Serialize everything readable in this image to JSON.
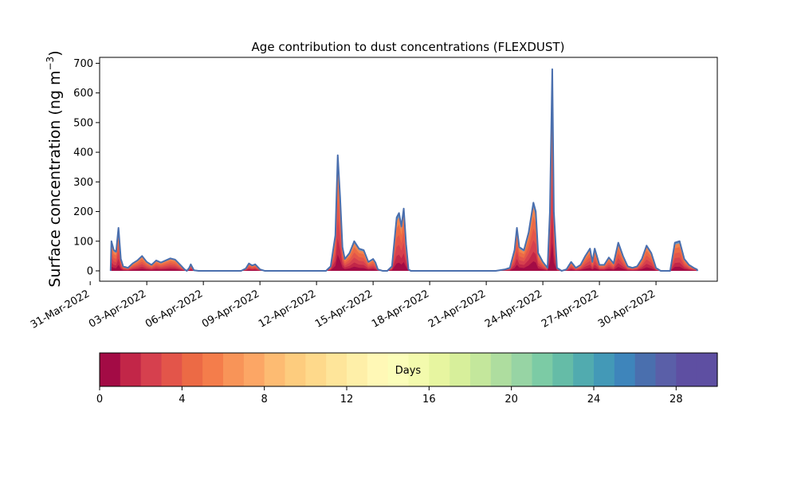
{
  "chart_data": {
    "type": "area",
    "title": "Age contribution to dust concentrations (FLEXDUST)",
    "ylabel_text": "Surface concentration (ng m",
    "ylabel_sup": "−3",
    "ylabel_close": ")",
    "ylim": [
      -35,
      720
    ],
    "yticks": [
      0,
      100,
      200,
      300,
      400,
      500,
      600,
      700
    ],
    "xlim": [
      "2022-03-31T12:00",
      "2022-05-03T06:00"
    ],
    "xtick_dates": [
      "2022-03-31",
      "2022-04-03",
      "2022-04-06",
      "2022-04-09",
      "2022-04-12",
      "2022-04-15",
      "2022-04-18",
      "2022-04-21",
      "2022-04-24",
      "2022-04-27",
      "2022-04-30"
    ],
    "xtick_labels": [
      "31-Mar-2022",
      "03-Apr-2022",
      "06-Apr-2022",
      "09-Apr-2022",
      "12-Apr-2022",
      "15-Apr-2022",
      "18-Apr-2022",
      "21-Apr-2022",
      "24-Apr-2022",
      "27-Apr-2022",
      "30-Apr-2022"
    ],
    "grid": false,
    "stacked": true,
    "series": [
      {
        "role": "total (all ages, upper envelope)",
        "color": "#4a6fae",
        "points": [
          [
            "2022-04-01T02:00",
            0
          ],
          [
            "2022-04-01T03:00",
            100
          ],
          [
            "2022-04-01T06:00",
            70
          ],
          [
            "2022-04-01T09:00",
            65
          ],
          [
            "2022-04-01T12:00",
            145
          ],
          [
            "2022-04-01T15:00",
            40
          ],
          [
            "2022-04-01T18:00",
            15
          ],
          [
            "2022-04-02T00:00",
            10
          ],
          [
            "2022-04-02T06:00",
            25
          ],
          [
            "2022-04-02T12:00",
            35
          ],
          [
            "2022-04-02T18:00",
            50
          ],
          [
            "2022-04-03T00:00",
            30
          ],
          [
            "2022-04-03T06:00",
            20
          ],
          [
            "2022-04-03T12:00",
            35
          ],
          [
            "2022-04-03T18:00",
            28
          ],
          [
            "2022-04-04T00:00",
            35
          ],
          [
            "2022-04-04T06:00",
            42
          ],
          [
            "2022-04-04T12:00",
            38
          ],
          [
            "2022-04-04T18:00",
            22
          ],
          [
            "2022-04-05T00:00",
            5
          ],
          [
            "2022-04-05T03:00",
            0
          ],
          [
            "2022-04-05T06:00",
            10
          ],
          [
            "2022-04-05T08:00",
            22
          ],
          [
            "2022-04-05T12:00",
            2
          ],
          [
            "2022-04-05T18:00",
            0
          ],
          [
            "2022-04-08T00:00",
            0
          ],
          [
            "2022-04-08T06:00",
            8
          ],
          [
            "2022-04-08T10:00",
            25
          ],
          [
            "2022-04-08T14:00",
            18
          ],
          [
            "2022-04-08T18:00",
            22
          ],
          [
            "2022-04-09T00:00",
            5
          ],
          [
            "2022-04-09T06:00",
            0
          ],
          [
            "2022-04-12T12:00",
            0
          ],
          [
            "2022-04-12T18:00",
            15
          ],
          [
            "2022-04-13T00:00",
            120
          ],
          [
            "2022-04-13T03:00",
            390
          ],
          [
            "2022-04-13T06:00",
            250
          ],
          [
            "2022-04-13T09:00",
            80
          ],
          [
            "2022-04-13T12:00",
            40
          ],
          [
            "2022-04-13T18:00",
            60
          ],
          [
            "2022-04-14T00:00",
            100
          ],
          [
            "2022-04-14T06:00",
            75
          ],
          [
            "2022-04-14T12:00",
            70
          ],
          [
            "2022-04-14T18:00",
            30
          ],
          [
            "2022-04-15T00:00",
            40
          ],
          [
            "2022-04-15T03:00",
            28
          ],
          [
            "2022-04-15T06:00",
            5
          ],
          [
            "2022-04-15T12:00",
            0
          ],
          [
            "2022-04-15T18:00",
            0
          ],
          [
            "2022-04-16T00:00",
            15
          ],
          [
            "2022-04-16T06:00",
            180
          ],
          [
            "2022-04-16T09:00",
            195
          ],
          [
            "2022-04-16T12:00",
            150
          ],
          [
            "2022-04-16T15:00",
            210
          ],
          [
            "2022-04-16T18:00",
            90
          ],
          [
            "2022-04-16T21:00",
            5
          ],
          [
            "2022-04-17T00:00",
            0
          ],
          [
            "2022-04-21T12:00",
            0
          ],
          [
            "2022-04-22T00:00",
            5
          ],
          [
            "2022-04-22T06:00",
            10
          ],
          [
            "2022-04-22T12:00",
            70
          ],
          [
            "2022-04-22T15:00",
            145
          ],
          [
            "2022-04-22T18:00",
            80
          ],
          [
            "2022-04-23T00:00",
            70
          ],
          [
            "2022-04-23T06:00",
            130
          ],
          [
            "2022-04-23T12:00",
            230
          ],
          [
            "2022-04-23T15:00",
            200
          ],
          [
            "2022-04-23T18:00",
            60
          ],
          [
            "2022-04-24T00:00",
            30
          ],
          [
            "2022-04-24T06:00",
            10
          ],
          [
            "2022-04-24T09:00",
            200
          ],
          [
            "2022-04-24T12:00",
            680
          ],
          [
            "2022-04-24T14:00",
            200
          ],
          [
            "2022-04-24T18:00",
            10
          ],
          [
            "2022-04-25T00:00",
            0
          ],
          [
            "2022-04-25T06:00",
            5
          ],
          [
            "2022-04-25T12:00",
            30
          ],
          [
            "2022-04-25T18:00",
            10
          ],
          [
            "2022-04-26T00:00",
            20
          ],
          [
            "2022-04-26T06:00",
            50
          ],
          [
            "2022-04-26T12:00",
            75
          ],
          [
            "2022-04-26T15:00",
            30
          ],
          [
            "2022-04-26T18:00",
            75
          ],
          [
            "2022-04-27T00:00",
            20
          ],
          [
            "2022-04-27T06:00",
            20
          ],
          [
            "2022-04-27T12:00",
            45
          ],
          [
            "2022-04-27T18:00",
            25
          ],
          [
            "2022-04-28T00:00",
            95
          ],
          [
            "2022-04-28T06:00",
            50
          ],
          [
            "2022-04-28T12:00",
            15
          ],
          [
            "2022-04-28T18:00",
            10
          ],
          [
            "2022-04-29T00:00",
            15
          ],
          [
            "2022-04-29T06:00",
            40
          ],
          [
            "2022-04-29T12:00",
            85
          ],
          [
            "2022-04-29T18:00",
            60
          ],
          [
            "2022-04-30T00:00",
            10
          ],
          [
            "2022-04-30T06:00",
            0
          ],
          [
            "2022-04-30T12:00",
            0
          ],
          [
            "2022-04-30T18:00",
            0
          ],
          [
            "2022-05-01T00:00",
            95
          ],
          [
            "2022-05-01T06:00",
            100
          ],
          [
            "2022-05-01T12:00",
            40
          ],
          [
            "2022-05-01T18:00",
            20
          ],
          [
            "2022-05-02T00:00",
            10
          ],
          [
            "2022-05-02T04:00",
            5
          ],
          [
            "2022-05-02T05:00",
            0
          ]
        ]
      }
    ],
    "colorbar": {
      "label": "Days",
      "range": [
        0,
        30
      ],
      "bin_width_days": 1,
      "ticks": [
        0,
        4,
        8,
        12,
        16,
        20,
        24,
        28
      ],
      "colormap": "Spectral",
      "colors": [
        "#a30b45",
        "#c22648",
        "#d6404e",
        "#e3554a",
        "#ec6a45",
        "#f47d4b",
        "#f89458",
        "#fca665",
        "#fdbb72",
        "#fdcc7e",
        "#fed98b",
        "#fee59a",
        "#feefa8",
        "#fff8b6",
        "#fbfdb9",
        "#f3faad",
        "#e7f5a0",
        "#d7ef9b",
        "#c4e79c",
        "#aedd9f",
        "#97d4a4",
        "#7ccba5",
        "#65bca7",
        "#51abaf",
        "#4399b7",
        "#3e85bb",
        "#4a6fae",
        "#5a5fa8",
        "#5e4fa2",
        "#5e4fa2"
      ]
    }
  }
}
